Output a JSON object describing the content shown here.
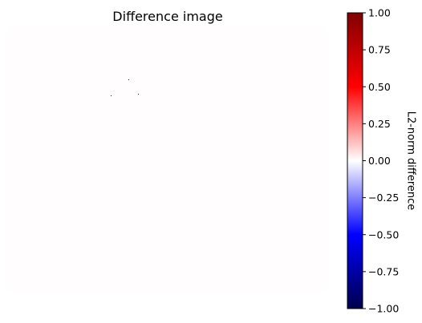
{
  "chart_data": {
    "type": "heatmap",
    "title": "Difference image",
    "axes_visible": false,
    "colormap": "seismic",
    "image": {
      "background_value": 0.0,
      "background_color": "#fffdfd",
      "speckles": [
        {
          "col": 150,
          "row": 66,
          "value": 0.0
        },
        {
          "col": 128,
          "row": 86,
          "value": 0.0
        },
        {
          "col": 162,
          "row": 84,
          "value": 0.0
        }
      ],
      "size": [
        396,
        330
      ]
    },
    "colorbar": {
      "label": "L2-norm difference",
      "vmin": -1.0,
      "vmax": 1.0,
      "ticks": [
        1.0,
        0.75,
        0.5,
        0.25,
        0.0,
        -0.25,
        -0.5,
        -0.75,
        -1.0
      ],
      "tick_labels": [
        "1.00",
        "0.75",
        "0.50",
        "0.25",
        "0.00",
        "−0.25",
        "−0.50",
        "−0.75",
        "−1.00"
      ],
      "stops": [
        {
          "value": -1.0,
          "color": "#00004c"
        },
        {
          "value": -0.5,
          "color": "#0000ff"
        },
        {
          "value": 0.0,
          "color": "#ffffff"
        },
        {
          "value": 0.5,
          "color": "#ff0000"
        },
        {
          "value": 1.0,
          "color": "#800000"
        }
      ]
    }
  }
}
